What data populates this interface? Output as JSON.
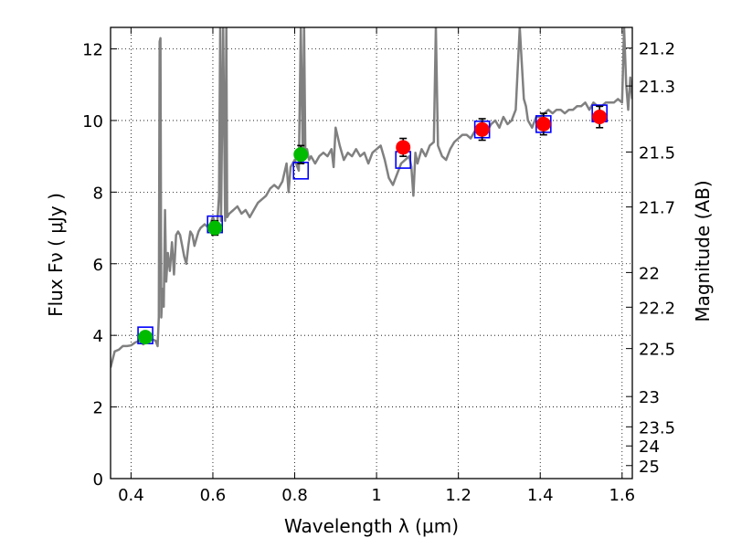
{
  "chart_data": {
    "type": "line",
    "xlabel": "Wavelength  λ (μm)",
    "ylabel": "Flux  Fν  ( μJy )",
    "y2label": "Magnitude (AB)",
    "xlim": [
      0.35,
      1.625
    ],
    "ylim": [
      0,
      12.6
    ],
    "grid": true,
    "x_ticks": [
      0.4,
      0.6,
      0.8,
      1.0,
      1.2,
      1.4,
      1.6
    ],
    "x_tick_labels": [
      "0.4",
      "0.6",
      "0.8",
      "1",
      "1.2",
      "1.4",
      "1.6"
    ],
    "y_ticks": [
      0,
      2,
      4,
      6,
      8,
      10,
      12
    ],
    "y_tick_labels": [
      "0",
      "2",
      "4",
      "6",
      "8",
      "10",
      "12"
    ],
    "y2_ticks": [
      {
        "mag": 21.2,
        "label": "21.2"
      },
      {
        "mag": 21.3,
        "label": "21.3"
      },
      {
        "mag": 21.5,
        "label": "21.5"
      },
      {
        "mag": 21.7,
        "label": "21.7"
      },
      {
        "mag": 22.0,
        "label": "22"
      },
      {
        "mag": 22.2,
        "label": "22.2"
      },
      {
        "mag": 22.5,
        "label": "22.5"
      },
      {
        "mag": 23.0,
        "label": "23"
      },
      {
        "mag": 23.5,
        "label": "23.5"
      },
      {
        "mag": 24.0,
        "label": "24"
      },
      {
        "mag": 25.0,
        "label": "25"
      }
    ],
    "colors": {
      "spectrum": "#808080",
      "model_box": "#0000ff",
      "green_points": "#00bb00",
      "red_points": "#ff0000",
      "grid": "#000000"
    },
    "series": [
      {
        "kind": "spectrum",
        "x": [
          0.35,
          0.36,
          0.37,
          0.38,
          0.39,
          0.4,
          0.41,
          0.42,
          0.43,
          0.44,
          0.45,
          0.46,
          0.465,
          0.468,
          0.47,
          0.472,
          0.474,
          0.477,
          0.48,
          0.483,
          0.486,
          0.49,
          0.495,
          0.5,
          0.505,
          0.51,
          0.515,
          0.52,
          0.525,
          0.53,
          0.535,
          0.54,
          0.545,
          0.55,
          0.555,
          0.56,
          0.565,
          0.57,
          0.58,
          0.59,
          0.6,
          0.61,
          0.615,
          0.618,
          0.62,
          0.625,
          0.63,
          0.633,
          0.635,
          0.64,
          0.65,
          0.66,
          0.67,
          0.68,
          0.69,
          0.7,
          0.71,
          0.72,
          0.73,
          0.74,
          0.75,
          0.76,
          0.77,
          0.78,
          0.785,
          0.79,
          0.8,
          0.81,
          0.815,
          0.82,
          0.823,
          0.826,
          0.83,
          0.835,
          0.84,
          0.85,
          0.86,
          0.87,
          0.88,
          0.89,
          0.895,
          0.9,
          0.91,
          0.92,
          0.93,
          0.94,
          0.95,
          0.96,
          0.97,
          0.98,
          0.99,
          1.0,
          1.01,
          1.02,
          1.03,
          1.04,
          1.05,
          1.06,
          1.07,
          1.08,
          1.085,
          1.09,
          1.095,
          1.1,
          1.11,
          1.12,
          1.13,
          1.14,
          1.145,
          1.15,
          1.16,
          1.17,
          1.18,
          1.19,
          1.2,
          1.21,
          1.22,
          1.23,
          1.24,
          1.25,
          1.26,
          1.27,
          1.28,
          1.29,
          1.3,
          1.31,
          1.32,
          1.33,
          1.34,
          1.35,
          1.36,
          1.365,
          1.37,
          1.38,
          1.39,
          1.4,
          1.41,
          1.42,
          1.43,
          1.44,
          1.45,
          1.46,
          1.47,
          1.48,
          1.49,
          1.5,
          1.51,
          1.52,
          1.53,
          1.54,
          1.55,
          1.56,
          1.57,
          1.58,
          1.59,
          1.6,
          1.605,
          1.61,
          1.615,
          1.62,
          1.625
        ],
        "y": [
          3.1,
          3.55,
          3.6,
          3.7,
          3.7,
          3.72,
          3.8,
          3.85,
          3.75,
          3.85,
          3.9,
          3.85,
          3.7,
          4.5,
          12.2,
          12.3,
          4.5,
          5.3,
          4.8,
          7.5,
          5.5,
          6.3,
          5.8,
          6.6,
          5.7,
          6.8,
          6.9,
          6.8,
          6.5,
          6.2,
          6.0,
          6.5,
          6.9,
          6.8,
          6.5,
          6.7,
          6.9,
          7.0,
          7.1,
          7.0,
          7.3,
          7.0,
          7.9,
          12.6,
          7.2,
          12.6,
          7.2,
          12.6,
          7.3,
          7.4,
          7.5,
          7.6,
          7.4,
          7.5,
          7.3,
          7.5,
          7.7,
          7.8,
          7.9,
          8.1,
          8.2,
          8.1,
          8.3,
          8.8,
          8.0,
          8.7,
          8.9,
          8.6,
          12.6,
          8.8,
          12.6,
          9.0,
          9.2,
          8.9,
          9.0,
          8.8,
          9.0,
          9.1,
          9.0,
          9.2,
          8.7,
          9.8,
          9.3,
          8.9,
          9.1,
          9.0,
          9.2,
          9.0,
          9.1,
          8.8,
          9.1,
          9.2,
          9.3,
          8.9,
          8.4,
          8.2,
          8.5,
          8.8,
          8.9,
          9.0,
          8.7,
          7.9,
          9.1,
          8.8,
          9.2,
          9.0,
          9.3,
          9.4,
          12.6,
          9.3,
          9.0,
          8.9,
          9.2,
          9.4,
          9.5,
          9.6,
          9.6,
          9.5,
          9.7,
          9.7,
          9.8,
          9.7,
          9.9,
          10.0,
          9.8,
          10.1,
          9.9,
          10.0,
          10.3,
          12.6,
          10.6,
          10.4,
          10.0,
          9.8,
          10.1,
          10.1,
          10.2,
          10.3,
          10.2,
          10.3,
          10.3,
          10.2,
          10.3,
          10.3,
          10.4,
          10.4,
          10.5,
          10.3,
          10.5,
          10.4,
          10.4,
          10.5,
          10.5,
          10.5,
          10.6,
          10.5,
          12.6,
          11.0,
          10.3,
          11.2,
          10.6
        ]
      },
      {
        "kind": "model_box",
        "x": [
          0.435,
          0.605,
          0.815,
          1.065,
          1.258,
          1.408,
          1.545
        ],
        "y": [
          4.0,
          7.1,
          8.6,
          8.9,
          9.75,
          9.9,
          10.2
        ]
      },
      {
        "kind": "green_points",
        "x": [
          0.435,
          0.605,
          0.815
        ],
        "y": [
          3.95,
          7.0,
          9.05
        ],
        "err": [
          0.15,
          0.2,
          0.25
        ]
      },
      {
        "kind": "red_points",
        "x": [
          1.065,
          1.258,
          1.408,
          1.545
        ],
        "y": [
          9.25,
          9.75,
          9.9,
          10.1
        ],
        "err": [
          0.25,
          0.3,
          0.3,
          0.3
        ]
      }
    ]
  }
}
